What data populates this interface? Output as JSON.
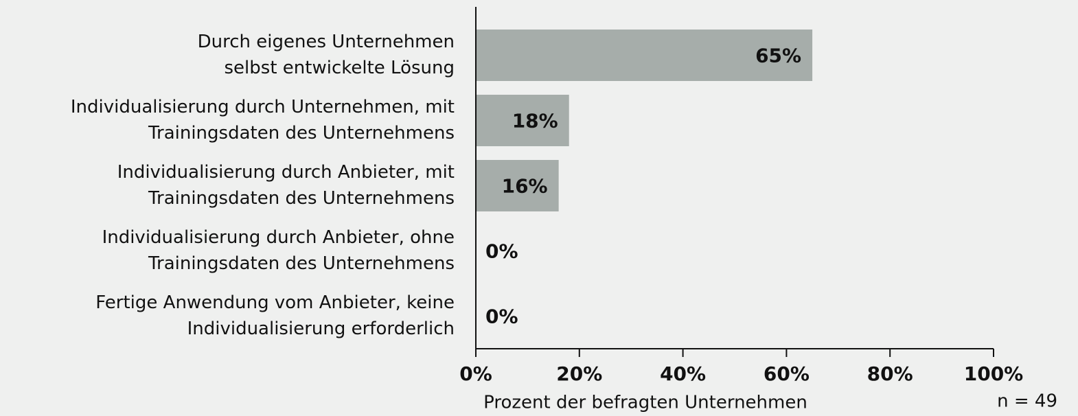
{
  "chart_data": {
    "type": "bar",
    "orientation": "horizontal",
    "categories": [
      [
        "Durch eigenes Unternehmen",
        "selbst entwickelte Lösung"
      ],
      [
        "Individualisierung durch Unternehmen, mit",
        "Trainingsdaten des Unternehmens"
      ],
      [
        "Individualisierung durch Anbieter, mit",
        "Trainingsdaten des Unternehmens"
      ],
      [
        "Individualisierung durch Anbieter, ohne",
        "Trainingsdaten des Unternehmens"
      ],
      [
        "Fertige Anwendung vom Anbieter, keine",
        "Individualisierung erforderlich"
      ]
    ],
    "values": [
      65,
      18,
      16,
      0,
      0
    ],
    "value_labels": [
      "65%",
      "18%",
      "16%",
      "0%",
      "0%"
    ],
    "color": "#a6adaa",
    "xlim": [
      0,
      100
    ],
    "xticks": [
      {
        "value": 0,
        "label": "0%"
      },
      {
        "value": 20,
        "label": "20%"
      },
      {
        "value": 40,
        "label": "40%"
      },
      {
        "value": 60,
        "label": "60%"
      },
      {
        "value": 80,
        "label": "80%"
      },
      {
        "value": 100,
        "label": "100%"
      }
    ],
    "xlabel": "Prozent der befragten Unternehmen",
    "annotation": "n = 49"
  }
}
